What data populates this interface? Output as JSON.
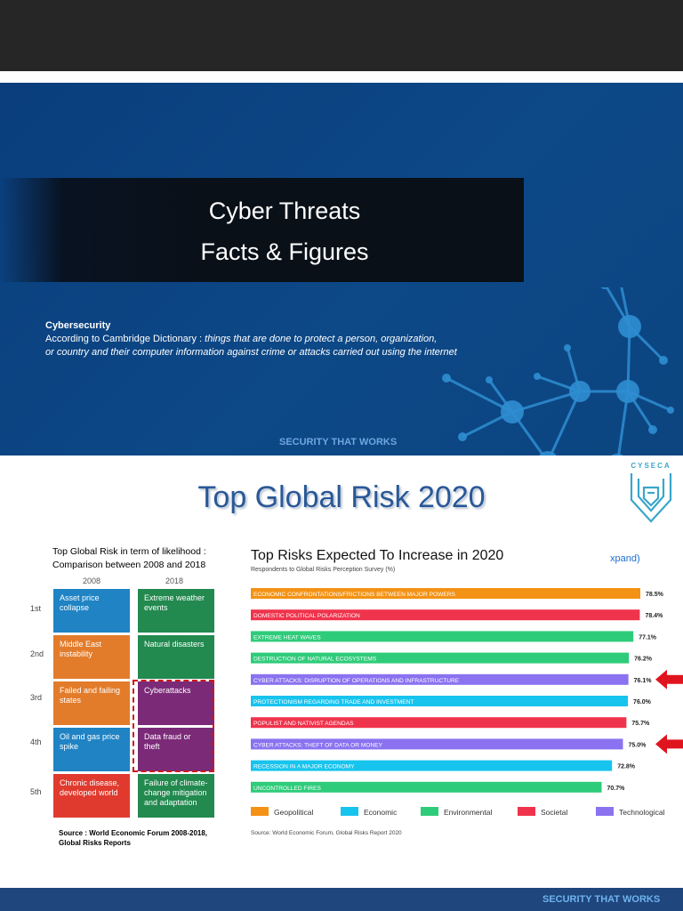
{
  "slide1": {
    "title_line1": "Cyber Threats",
    "title_line2": "Facts & Figures",
    "definition_heading": "Cybersecurity",
    "definition_intro": "According to Cambridge Dictionary : ",
    "definition_text_1": "things that are done  to protect a person, organization,",
    "definition_text_2": "or country and their computer information against crime or attacks carried out using the internet",
    "tagline": "SECURITY THAT WORKS"
  },
  "slide2": {
    "title": "Top Global Risk 2020",
    "logo_text": "CYSECA",
    "left_table": {
      "title_line1": "Top Global Risk in term of likelihood :",
      "title_line2": "Comparison between 2008 and 2018",
      "years": [
        "2008",
        "2018"
      ],
      "ranks": [
        "1st",
        "2nd",
        "3rd",
        "4th",
        "5th"
      ],
      "col_2008": [
        {
          "text": "Asset price collapse",
          "color": "#1f83c4"
        },
        {
          "text": "Middle East instability",
          "color": "#e27c2b"
        },
        {
          "text": "Failed and failing states",
          "color": "#e27c2b"
        },
        {
          "text": "Oil and gas price spike",
          "color": "#1f83c4"
        },
        {
          "text": "Chronic disease, developed world",
          "color": "#e03a2e"
        }
      ],
      "col_2018": [
        {
          "text": "Extreme weather events",
          "color": "#22894f"
        },
        {
          "text": "Natural disasters",
          "color": "#22894f"
        },
        {
          "text": "Cyberattacks",
          "color": "#7b2a78"
        },
        {
          "text": "Data fraud or theft",
          "color": "#7b2a78"
        },
        {
          "text": "Failure of climate-change mitigation and adaptation",
          "color": "#22894f"
        }
      ],
      "source_line1": "Source : World Economic Forum 2008-2018,",
      "source_line2": "Global Risks Reports"
    },
    "chart_title": "Top Risks Expected To Increase in 2020",
    "chart_subtitle": "Respondents to Global Risks Perception Survey (%)",
    "chart_xpand": "xpand)",
    "chart_source": "Source: World Economic Forum, Global Risks Report 2020"
  },
  "chart_data": {
    "type": "bar",
    "orientation": "horizontal",
    "title": "Top Risks Expected To Increase in 2020",
    "subtitle": "Respondents to Global Risks Perception Survey (%)",
    "categories": [
      "ECONOMIC CONFRONTATIONS/FRICTIONS BETWEEN MAJOR POWERS",
      "DOMESTIC POLITICAL POLARIZATION",
      "EXTREME HEAT WAVES",
      "DESTRUCTION OF NATURAL ECOSYSTEMS",
      "CYBER ATTACKS: DISRUPTION OF OPERATIONS AND INFRASTRUCTURE",
      "PROTECTIONISM REGARDING TRADE AND INVESTMENT",
      "POPULIST AND NATIVIST AGENDAS",
      "CYBER ATTACKS: THEFT OF DATA OR MONEY",
      "RECESSION IN A MAJOR ECONOMY",
      "UNCONTROLLED FIRES"
    ],
    "values": [
      78.5,
      78.4,
      77.1,
      76.2,
      76.1,
      76.0,
      75.7,
      75.0,
      72.8,
      70.7
    ],
    "value_labels": [
      "78.5%",
      "78.4%",
      "77.1%",
      "76.2%",
      "76.1%",
      "76.0%",
      "75.7%",
      "75.0%",
      "72.8%",
      "70.7%"
    ],
    "bar_groups": [
      "Geopolitical",
      "Societal",
      "Environmental",
      "Environmental",
      "Technological",
      "Economic",
      "Societal",
      "Technological",
      "Economic",
      "Environmental"
    ],
    "legend": [
      {
        "name": "Geopolitical",
        "color": "#f39214"
      },
      {
        "name": "Economic",
        "color": "#17c4ee"
      },
      {
        "name": "Environmental",
        "color": "#2ecc7a"
      },
      {
        "name": "Societal",
        "color": "#f0334c"
      },
      {
        "name": "Technological",
        "color": "#8a72f0"
      }
    ],
    "highlighted": [
      4,
      7
    ],
    "highlight_color": "#e0141e",
    "legend_position": "bottom"
  },
  "bottom_tagline": "SECURITY THAT WORKS"
}
